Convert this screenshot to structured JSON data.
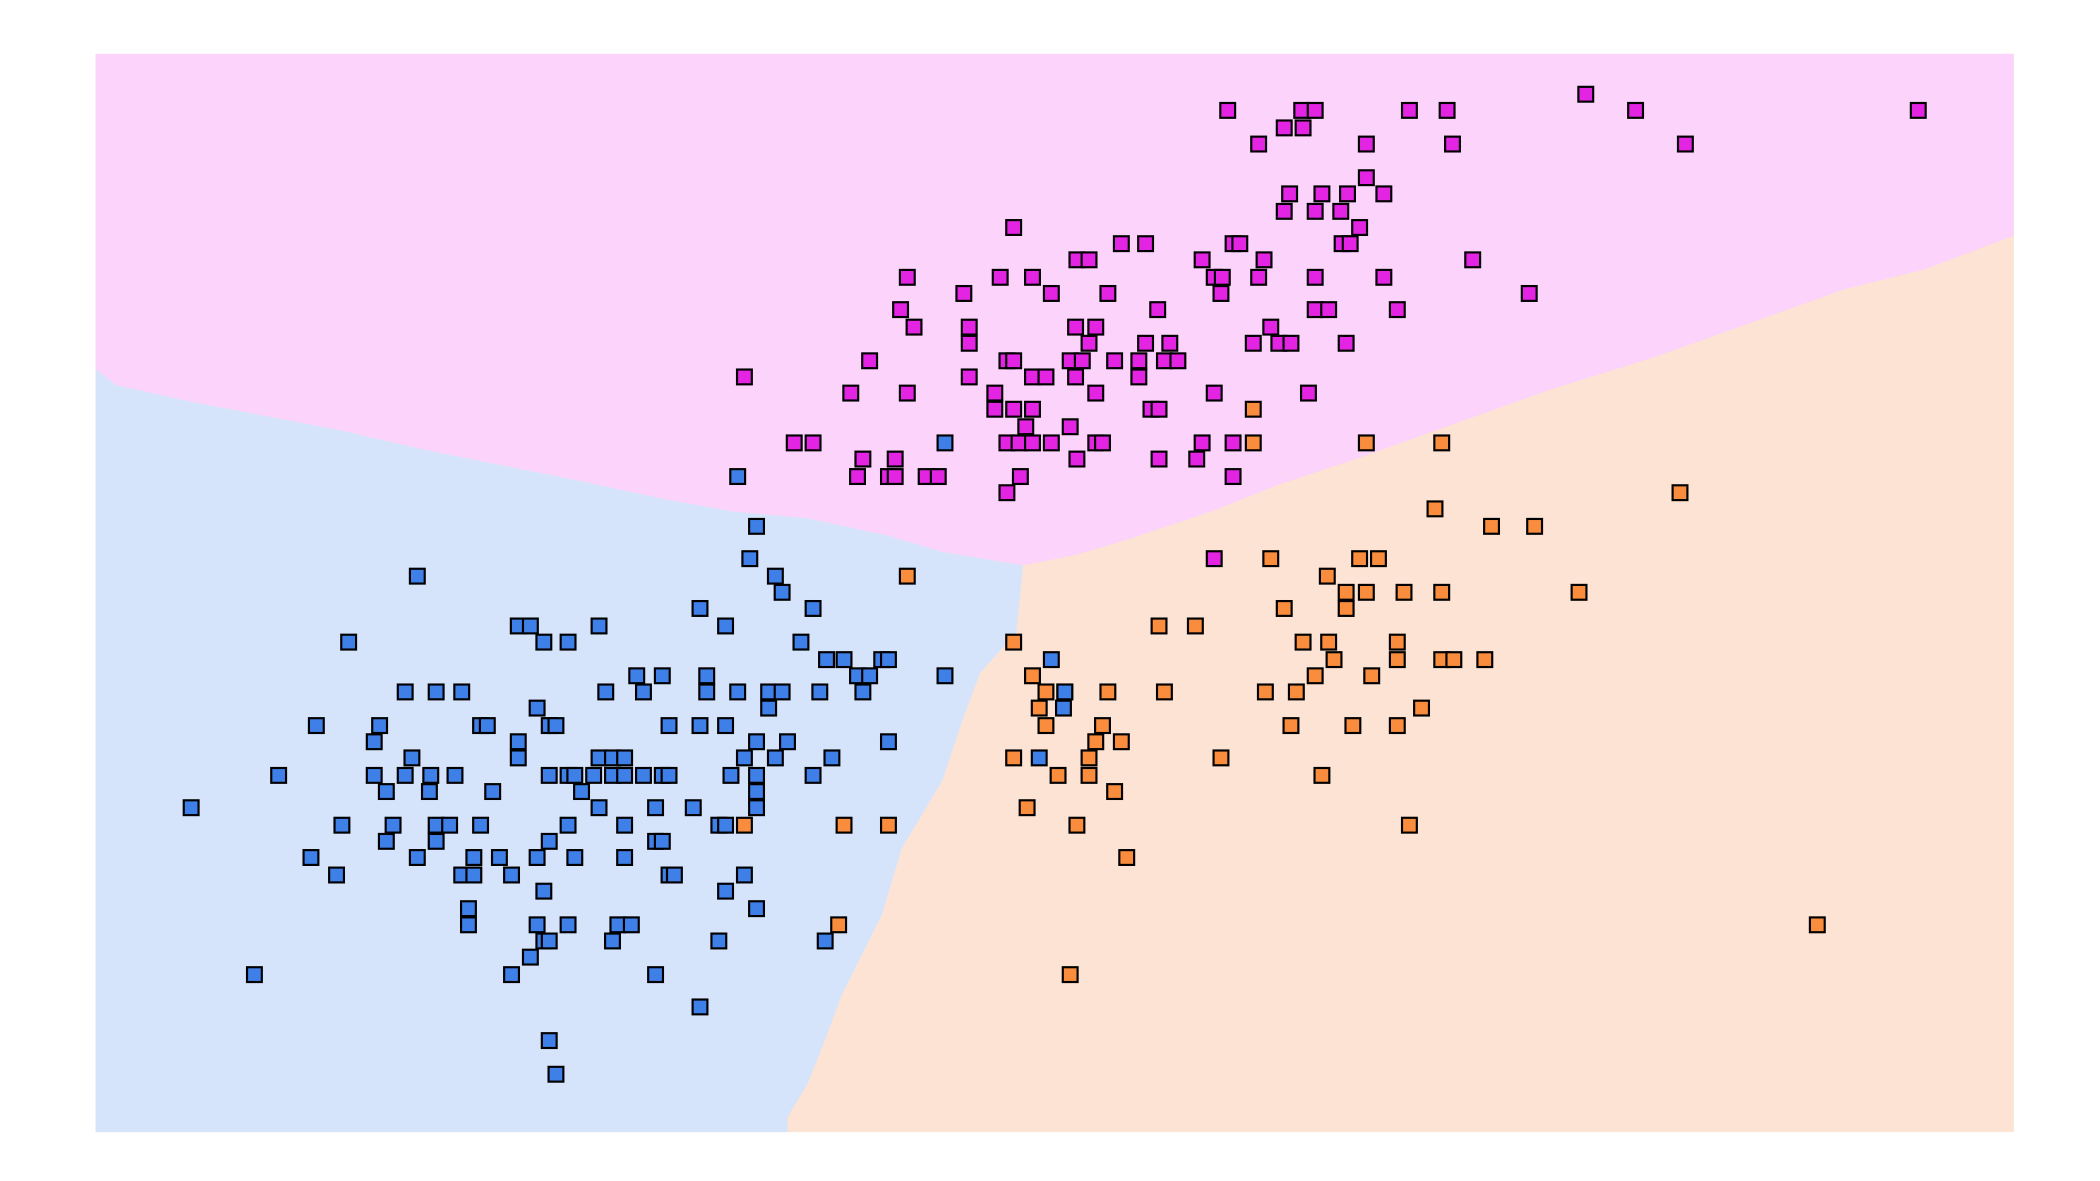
{
  "chart_data": {
    "type": "scatter",
    "xlim": [
      0,
      1425
    ],
    "ylim": [
      0,
      801
    ],
    "series": [
      {
        "color": "#e324e3",
        "x": [
          841,
          896,
          906,
          976,
          1004,
          1107,
          1144,
          1354,
          883,
          897,
          864,
          944,
          1008,
          1181,
          944,
          887,
          911,
          930,
          957,
          883,
          906,
          925,
          939,
          682,
          926,
          932,
          762,
          780,
          845,
          850,
          729,
          738,
          822,
          868,
          1023,
          603,
          672,
          696,
          831,
          837,
          864,
          906,
          957,
          645,
          710,
          752,
          836,
          1065,
          598,
          789,
          906,
          916,
          967,
          608,
          649,
          728,
          743,
          873,
          649,
          738,
          780,
          798,
          860,
          879,
          888,
          929,
          575,
          677,
          682,
          724,
          733,
          757,
          775,
          794,
          804,
          482,
          649,
          696,
          706,
          728,
          775,
          561,
          603,
          668,
          743,
          831,
          901,
          668,
          682,
          696,
          784,
          790,
          691,
          724,
          519,
          533,
          677,
          686,
          696,
          710,
          743,
          748,
          822,
          845,
          570,
          594,
          729,
          790,
          818,
          566,
          589,
          594,
          617,
          626,
          687,
          845,
          677,
          831
        ],
        "y": [
          759,
          759,
          759,
          759,
          759,
          771,
          759,
          759,
          746,
          746,
          734,
          734,
          734,
          734,
          709,
          697,
          697,
          697,
          697,
          684,
          684,
          684,
          672,
          672,
          660,
          660,
          660,
          660,
          660,
          660,
          648,
          648,
          648,
          648,
          648,
          635,
          635,
          635,
          635,
          635,
          635,
          635,
          635,
          623,
          623,
          623,
          623,
          623,
          611,
          611,
          611,
          611,
          611,
          598,
          598,
          598,
          598,
          598,
          586,
          586,
          586,
          586,
          586,
          586,
          586,
          586,
          573,
          573,
          573,
          573,
          573,
          573,
          573,
          573,
          573,
          561,
          561,
          561,
          561,
          561,
          561,
          549,
          549,
          549,
          549,
          549,
          549,
          537,
          537,
          537,
          537,
          537,
          524,
          524,
          512,
          512,
          512,
          512,
          512,
          512,
          512,
          512,
          512,
          512,
          500,
          500,
          500,
          500,
          500,
          487,
          487,
          487,
          487,
          487,
          487,
          487,
          475,
          426
        ]
      },
      {
        "color": "#f98d3d",
        "x": [
          860,
          860,
          944,
          1000,
          1177,
          995,
          1037,
          1069,
          873,
          939,
          953,
          603,
          915,
          929,
          944,
          972,
          1000,
          1102,
          883,
          929,
          790,
          817,
          682,
          897,
          916,
          967,
          920,
          967,
          1000,
          1009,
          1032,
          696,
          906,
          948,
          706,
          720,
          752,
          794,
          869,
          892,
          701,
          985,
          706,
          748,
          888,
          934,
          967,
          743,
          762,
          682,
          738,
          836,
          715,
          738,
          911,
          757,
          692,
          482,
          556,
          589,
          729,
          976,
          766,
          552,
          1279,
          724
        ],
        "y": [
          537,
          512,
          512,
          512,
          475,
          463,
          450,
          450,
          426,
          426,
          426,
          413,
          413,
          401,
          401,
          401,
          401,
          401,
          389,
          389,
          376,
          376,
          364,
          364,
          364,
          364,
          351,
          351,
          351,
          351,
          351,
          339,
          339,
          339,
          327,
          327,
          327,
          327,
          327,
          327,
          315,
          315,
          302,
          302,
          302,
          302,
          302,
          290,
          290,
          278,
          278,
          278,
          265,
          265,
          265,
          253,
          241,
          228,
          228,
          228,
          228,
          228,
          204,
          154,
          154,
          117
        ]
      },
      {
        "color": "#3f7fe8",
        "x": [
          477,
          631,
          491,
          486,
          505,
          510,
          239,
          533,
          449,
          314,
          323,
          374,
          468,
          188,
          333,
          351,
          524,
          543,
          556,
          584,
          589,
          710,
          402,
          421,
          454,
          566,
          575,
          631,
          230,
          253,
          272,
          379,
          407,
          454,
          477,
          500,
          510,
          538,
          570,
          720,
          328,
          500,
          719,
          164,
          211,
          286,
          291,
          337,
          342,
          426,
          449,
          468,
          207,
          314,
          491,
          514,
          589,
          235,
          314,
          374,
          384,
          393,
          482,
          505,
          547,
          701,
          136,
          207,
          230,
          249,
          267,
          337,
          351,
          356,
          370,
          384,
          393,
          407,
          421,
          426,
          472,
          491,
          533,
          216,
          248,
          295,
          361,
          491,
          71,
          374,
          416,
          444,
          491,
          183,
          221,
          253,
          263,
          286,
          351,
          393,
          463,
          468,
          216,
          253,
          337,
          416,
          421,
          160,
          239,
          281,
          300,
          328,
          356,
          393,
          179,
          272,
          281,
          309,
          426,
          430,
          482,
          333,
          468,
          277,
          491,
          277,
          328,
          351,
          388,
          398,
          333,
          337,
          384,
          463,
          542,
          323,
          118,
          309,
          416,
          449,
          337,
          342
        ],
        "y": [
          487,
          512,
          450,
          426,
          413,
          401,
          413,
          389,
          389,
          376,
          376,
          376,
          376,
          364,
          364,
          364,
          364,
          351,
          351,
          351,
          351,
          351,
          339,
          339,
          339,
          339,
          339,
          339,
          327,
          327,
          327,
          327,
          327,
          327,
          327,
          327,
          327,
          327,
          327,
          327,
          315,
          315,
          315,
          302,
          302,
          302,
          302,
          302,
          302,
          302,
          302,
          302,
          290,
          290,
          290,
          290,
          290,
          278,
          278,
          278,
          278,
          278,
          278,
          278,
          278,
          278,
          265,
          265,
          265,
          265,
          265,
          265,
          265,
          265,
          265,
          265,
          265,
          265,
          265,
          265,
          265,
          265,
          265,
          253,
          253,
          253,
          253,
          253,
          241,
          241,
          241,
          241,
          241,
          228,
          228,
          228,
          228,
          228,
          228,
          228,
          228,
          228,
          216,
          216,
          216,
          216,
          216,
          204,
          204,
          204,
          204,
          204,
          204,
          204,
          191,
          191,
          191,
          191,
          191,
          191,
          191,
          179,
          179,
          166,
          166,
          154,
          154,
          154,
          154,
          154,
          142,
          142,
          142,
          142,
          142,
          130,
          117,
          117,
          117,
          93,
          68,
          43
        ]
      }
    ]
  }
}
